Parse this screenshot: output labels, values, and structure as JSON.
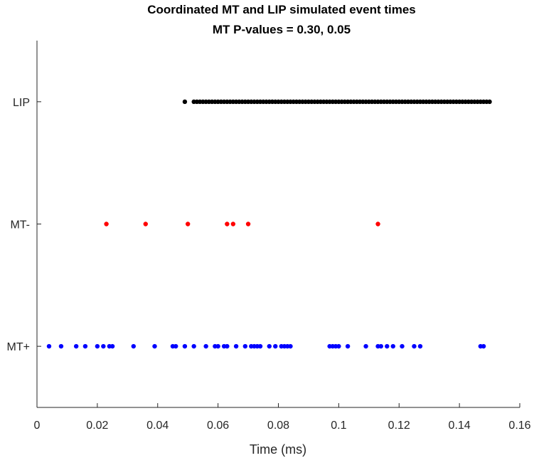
{
  "chart_data": {
    "type": "scatter",
    "title": "Coordinated MT and LIP simulated event times",
    "subtitle": "MT P-values = 0.30, 0.05",
    "xlabel": "Time (ms)",
    "ylabel": "",
    "xlim": [
      0,
      0.16
    ],
    "ylim": [
      0.5,
      3.5
    ],
    "x_ticks": [
      "0",
      "0.02",
      "0.04",
      "0.06",
      "0.08",
      "0.1",
      "0.12",
      "0.14",
      "0.16"
    ],
    "y_categories": [
      "MT+",
      "MT-",
      "LIP"
    ],
    "grid": false,
    "series": [
      {
        "name": "LIP",
        "color": "#000000",
        "y": 3,
        "x": [
          0.049,
          0.052,
          0.053,
          0.054,
          0.055,
          0.056,
          0.057,
          0.058,
          0.059,
          0.06,
          0.061,
          0.062,
          0.063,
          0.064,
          0.065,
          0.066,
          0.067,
          0.068,
          0.069,
          0.07,
          0.071,
          0.072,
          0.073,
          0.074,
          0.075,
          0.076,
          0.077,
          0.078,
          0.079,
          0.08,
          0.081,
          0.082,
          0.083,
          0.084,
          0.085,
          0.086,
          0.087,
          0.088,
          0.089,
          0.09,
          0.091,
          0.092,
          0.093,
          0.094,
          0.095,
          0.096,
          0.097,
          0.098,
          0.099,
          0.1,
          0.101,
          0.102,
          0.103,
          0.104,
          0.105,
          0.106,
          0.107,
          0.108,
          0.109,
          0.11,
          0.111,
          0.112,
          0.113,
          0.114,
          0.115,
          0.116,
          0.117,
          0.118,
          0.119,
          0.12,
          0.121,
          0.122,
          0.123,
          0.124,
          0.125,
          0.126,
          0.127,
          0.128,
          0.129,
          0.13,
          0.131,
          0.132,
          0.133,
          0.134,
          0.135,
          0.136,
          0.137,
          0.138,
          0.139,
          0.14,
          0.141,
          0.142,
          0.143,
          0.144,
          0.145,
          0.146,
          0.147,
          0.148,
          0.149,
          0.15
        ]
      },
      {
        "name": "MT-",
        "color": "#ff0000",
        "y": 2,
        "x": [
          0.023,
          0.036,
          0.05,
          0.063,
          0.065,
          0.07,
          0.113
        ]
      },
      {
        "name": "MT+",
        "color": "#0000ff",
        "y": 1,
        "x": [
          0.004,
          0.008,
          0.013,
          0.016,
          0.02,
          0.022,
          0.024,
          0.025,
          0.032,
          0.039,
          0.045,
          0.046,
          0.049,
          0.052,
          0.056,
          0.059,
          0.06,
          0.062,
          0.063,
          0.066,
          0.069,
          0.071,
          0.072,
          0.073,
          0.074,
          0.077,
          0.079,
          0.081,
          0.082,
          0.083,
          0.084,
          0.097,
          0.098,
          0.099,
          0.1,
          0.103,
          0.109,
          0.113,
          0.114,
          0.116,
          0.118,
          0.121,
          0.125,
          0.127,
          0.147,
          0.148
        ]
      }
    ]
  }
}
